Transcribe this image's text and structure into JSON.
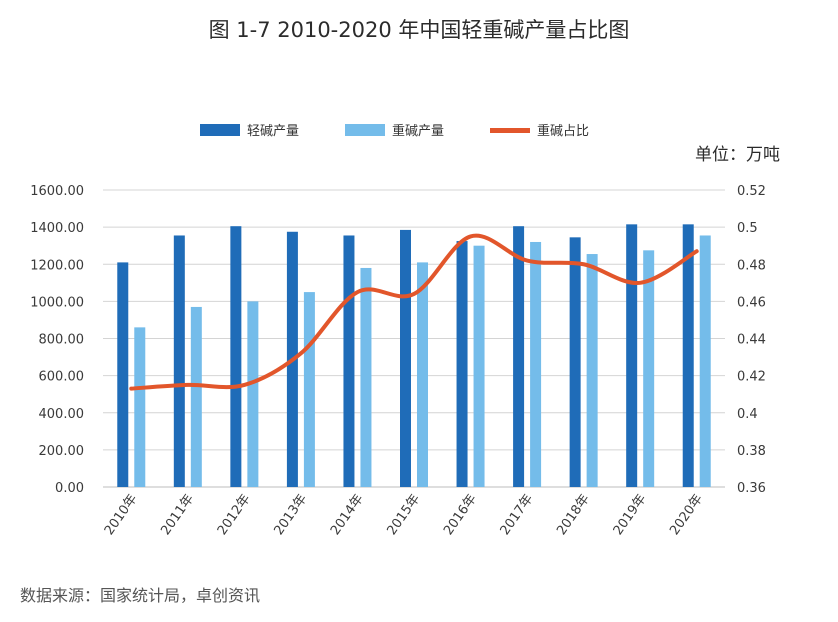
{
  "chart_data": {
    "type": "bar",
    "title": "图 1-7    2010-2020 年中国轻重碱产量占比图",
    "unit_label": "单位：万吨",
    "source": "数据来源：国家统计局，卓创资讯",
    "categories": [
      "2010年",
      "2011年",
      "2012年",
      "2013年",
      "2014年",
      "2015年",
      "2016年",
      "2017年",
      "2018年",
      "2019年",
      "2020年"
    ],
    "series": [
      {
        "name": "轻碱产量",
        "type": "bar",
        "axis": "left",
        "color": "#1f6cb8",
        "values": [
          1210,
          1355,
          1405,
          1375,
          1355,
          1385,
          1325,
          1405,
          1345,
          1415,
          1415
        ]
      },
      {
        "name": "重碱产量",
        "type": "bar",
        "axis": "left",
        "color": "#74bcea",
        "values": [
          860,
          970,
          1000,
          1050,
          1180,
          1210,
          1300,
          1320,
          1255,
          1275,
          1355
        ]
      },
      {
        "name": "重碱占比",
        "type": "line",
        "axis": "right",
        "color": "#e2562b",
        "values": [
          0.413,
          0.415,
          0.415,
          0.432,
          0.465,
          0.464,
          0.495,
          0.482,
          0.48,
          0.47,
          0.487
        ]
      }
    ],
    "y_left": {
      "ylim": [
        0,
        1600
      ],
      "ticks": [
        "0.00",
        "200.00",
        "400.00",
        "600.00",
        "800.00",
        "1000.00",
        "1200.00",
        "1400.00",
        "1600.00"
      ]
    },
    "y_right": {
      "ylim": [
        0.36,
        0.52
      ],
      "ticks": [
        "0.36",
        "0.38",
        "0.4",
        "0.42",
        "0.44",
        "0.46",
        "0.48",
        "0.5",
        "0.52"
      ]
    },
    "grid": true,
    "legend_position": "top"
  }
}
